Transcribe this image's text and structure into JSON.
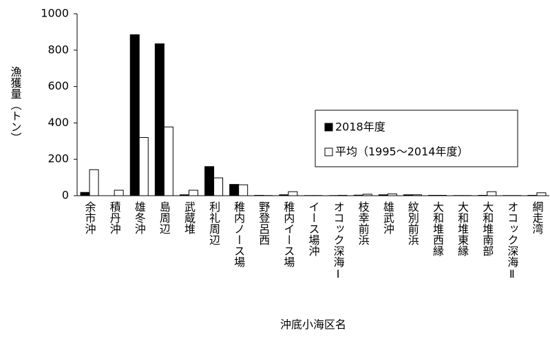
{
  "chart_data": {
    "type": "bar",
    "y_label": "漁獲量（トン）",
    "x_label": "沖底小海区名",
    "categories": [
      "余市沖",
      "積丹沖",
      "雄冬沖",
      "島周辺",
      "武蔵堆",
      "利礼周辺",
      "稚内ノース場",
      "野登呂西",
      "稚内イース場",
      "イース場沖",
      "オコック深海Ⅰ",
      "枝幸前浜",
      "雄武沖",
      "紋別前浜",
      "大和堆西縁",
      "大和堆東縁",
      "大和堆南部",
      "オコック深海Ⅱ",
      "網走湾"
    ],
    "series": [
      {
        "name": "2018年度",
        "color": "#000000",
        "values": [
          18,
          0,
          885,
          835,
          5,
          160,
          62,
          2,
          5,
          1,
          1,
          3,
          5,
          5,
          2,
          1,
          2,
          1,
          2
        ]
      },
      {
        "name": "平均（1995～2014年度）",
        "color": "#ffffff",
        "values": [
          143,
          30,
          320,
          378,
          30,
          98,
          60,
          1,
          22,
          1,
          2,
          8,
          10,
          5,
          2,
          1,
          22,
          1,
          16
        ]
      }
    ],
    "ylim": [
      0,
      1000
    ],
    "yticks": [
      0,
      200,
      400,
      600,
      800,
      1000
    ],
    "grid": false,
    "legend": "right"
  }
}
